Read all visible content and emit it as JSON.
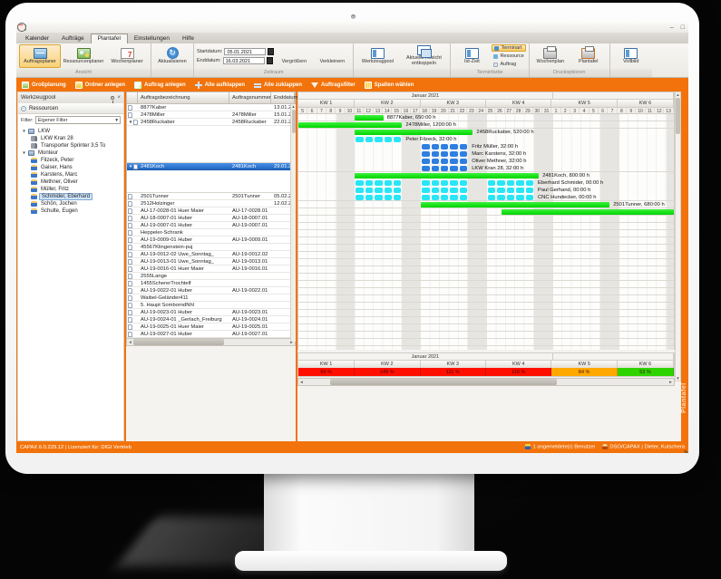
{
  "window": {
    "menu": [
      "Kalender",
      "Aufträge",
      "Plantafel",
      "Einstellungen",
      "Hilfe"
    ],
    "active_menu": "Plantafel",
    "minimize": "–",
    "maximize": "□"
  },
  "ribbon": {
    "auftragsplaner": "Auftragsplaner",
    "ressourcenplaner": "Ressourcenplaner",
    "wochenplaner": "Wochenplaner",
    "ansicht_group": "Ansicht",
    "aktualisieren": "Aktualisieren",
    "refresh_glyph": "↻",
    "startdatum_label": "Startdatum:",
    "startdatum_value": "05.01.2021",
    "enddatum_label": "Enddatum:",
    "enddatum_value": "16.03.2021",
    "vergroessern": "Vergrößern",
    "verkleinern": "Verkleinern",
    "zeitraum_group": "Zeitraum",
    "werkzeugpool": "Werkzeugpool",
    "entkoppeln": "Aktuelle Ansicht entkoppeln",
    "ist_zeit": "Ist-Zeit",
    "terminart": "Terminart",
    "ressource": "Ressource",
    "auftrag": "Auftrag",
    "terminfarbe_group": "Terminfarbe",
    "wochenplan": "Wochenplan",
    "plantafel_print": "Plantafel",
    "druckoptionen_group": "Druckoptionen",
    "vollbild": "Vollbild"
  },
  "action_bar": {
    "items": [
      {
        "icon": "chart",
        "label": "Großplanung"
      },
      {
        "icon": "folder",
        "label": "Ordner anlegen"
      },
      {
        "icon": "doc",
        "label": "Auftrag anlegen"
      },
      {
        "icon": "plus",
        "label": "Alle aufklappen"
      },
      {
        "icon": "minus",
        "label": "Alle zuklappen"
      },
      {
        "icon": "funnel",
        "label": "Auftragsfilter"
      },
      {
        "icon": "cols",
        "label": "Spalten wählen"
      }
    ]
  },
  "sidebar": {
    "title": "Werkzeugpool",
    "close_glyph": "×",
    "panel_header": "Ressourcen",
    "collapse_glyph": "-",
    "filter_label": "Filter:",
    "filter_value": "Eigener Filter",
    "dropdown_glyph": "▾",
    "tree": [
      {
        "label": "LKW",
        "type": "group",
        "indent": 0
      },
      {
        "label": "LKW Kran 28",
        "type": "truck",
        "indent": 1
      },
      {
        "label": "Transporter Sprinter 3,5 To",
        "type": "truck",
        "indent": 1
      },
      {
        "label": "Monteur",
        "type": "group",
        "indent": 0
      },
      {
        "label": "Filzeck, Peter",
        "type": "person",
        "indent": 1
      },
      {
        "label": "Gaiser, Hans",
        "type": "person",
        "indent": 1
      },
      {
        "label": "Karstens, Marc",
        "type": "person",
        "indent": 1
      },
      {
        "label": "Methner, Oliver",
        "type": "person",
        "indent": 1
      },
      {
        "label": "Müller, Fritz",
        "type": "person",
        "indent": 1
      },
      {
        "label": "Schmider, Eberhard",
        "type": "person",
        "indent": 1,
        "selected": true
      },
      {
        "label": "Schön, Jochen",
        "type": "person",
        "indent": 1
      },
      {
        "label": "Schulte, Eugen",
        "type": "person",
        "indent": 1
      }
    ]
  },
  "orders": {
    "columns": [
      "Auftragsbezeichnung",
      "Auftragsnummer",
      "Enddatum"
    ],
    "rows": [
      {
        "name": "8877Kaber",
        "number": "",
        "end": "13.01.2021"
      },
      {
        "name": "2478Miller",
        "number": "2478Miller",
        "end": "15.01.2021"
      },
      {
        "name": "2458Ruckaber",
        "number": "2458Ruckaber",
        "end": "22.01.2021",
        "expanded": true,
        "spacer": 41
      },
      {
        "name": "2481Koch",
        "number": "2481Koch",
        "end": "29.01.2021",
        "expanded": true,
        "selected": true,
        "spacer": 25
      },
      {
        "name": "2501Tunner",
        "number": "2501Tunner",
        "end": "05.02.2021"
      },
      {
        "name": "2512Holzinger",
        "number": "",
        "end": "12.02.2021"
      },
      {
        "name": "AU-17-0028-01 Huer Maier",
        "number": "AU-17-0028.01",
        "end": ""
      },
      {
        "name": "AU-18-0007-01 Huber",
        "number": "AU-18-0007.01",
        "end": ""
      },
      {
        "name": "AU-19-0007-01 Huber",
        "number": "AU-19-0007.01",
        "end": ""
      },
      {
        "name": "Heppeler-Schrank",
        "number": "",
        "end": ""
      },
      {
        "name": "AU-19-0009-01 Huber",
        "number": "AU-19-0009.01",
        "end": ""
      },
      {
        "name": "45567Klingenstein-puj",
        "number": "",
        "end": ""
      },
      {
        "name": "AU-19-0012-02 Uwe_Sonntag_",
        "number": "AU-19-0012.02",
        "end": ""
      },
      {
        "name": "AU-19-0013-01 Uwe_Sonntag_",
        "number": "AU-19-0013.01",
        "end": ""
      },
      {
        "name": "AU-19-0016-01 Huer Maier",
        "number": "AU-19-0016.01",
        "end": ""
      },
      {
        "name": "2555Lange",
        "number": "",
        "end": ""
      },
      {
        "name": "1455SchererTrochtelf",
        "number": "",
        "end": ""
      },
      {
        "name": "AU-19-0022-01 Huber",
        "number": "AU-19-0022.01",
        "end": ""
      },
      {
        "name": "Waibel-Geländer411",
        "number": "",
        "end": ""
      },
      {
        "name": "5. Haupt SomborndNhl",
        "number": "",
        "end": ""
      },
      {
        "name": "AU-19-0023-01 Huber",
        "number": "AU-19-0023.01",
        "end": ""
      },
      {
        "name": "AU-19-0024-01 _Gerlach_Freiburg",
        "number": "AU-19-0024.01",
        "end": ""
      },
      {
        "name": "AU-19-0025-01 Huer Maier",
        "number": "AU-19-0025.01",
        "end": ""
      },
      {
        "name": "AU-19-0027-01 Huber",
        "number": "AU-19-0027.01",
        "end": ""
      }
    ]
  },
  "gantt": {
    "month_label": "Januar 2021",
    "weeks": [
      {
        "label": "KW 1",
        "days": [
          "5",
          "6",
          "7",
          "8",
          "9",
          "10"
        ]
      },
      {
        "label": "KW 2",
        "days": [
          "11",
          "12",
          "13",
          "14",
          "15",
          "16",
          "17"
        ]
      },
      {
        "label": "KW 3",
        "days": [
          "18",
          "19",
          "20",
          "21",
          "22",
          "23",
          "24"
        ]
      },
      {
        "label": "KW 4",
        "days": [
          "25",
          "26",
          "27",
          "28",
          "29",
          "30",
          "31"
        ]
      },
      {
        "label": "KW 5",
        "days": [
          "1",
          "2",
          "3",
          "4",
          "5",
          "6",
          "7"
        ]
      },
      {
        "label": "KW 6",
        "days": [
          "8",
          "9",
          "10",
          "11",
          "12",
          "13"
        ]
      }
    ],
    "january_col_count": 27,
    "weekend_indices": [
      4,
      5,
      11,
      12,
      18,
      19,
      25,
      26,
      32,
      33,
      39
    ],
    "rows": [
      {
        "type": "bar",
        "start": 6,
        "end": 9,
        "label": "8877Kaber, 650:00 h",
        "sep": true
      },
      {
        "type": "bar",
        "start": 0,
        "end": 11,
        "label": "2478Miller, 1200:00 h",
        "sep": true
      },
      {
        "type": "bar",
        "start": 6,
        "end": 18.5,
        "label": "2458Ruckaber, 520:00 h"
      },
      {
        "type": "pills",
        "color": "cyan",
        "groups": [
          [
            6,
            10
          ]
        ],
        "label": "Peter Filzeck, 32:00 h"
      },
      {
        "type": "pills",
        "color": "blue",
        "groups": [
          [
            13,
            17
          ]
        ],
        "label": "Fritz Müller, 32:00 h"
      },
      {
        "type": "pills",
        "color": "blue",
        "groups": [
          [
            13,
            17
          ]
        ],
        "label": "Marc Karstens, 32:00 h"
      },
      {
        "type": "pills",
        "color": "blue",
        "groups": [
          [
            13,
            17
          ]
        ],
        "label": "Oliver Methner, 32:00 h"
      },
      {
        "type": "pills",
        "color": "blue",
        "groups": [
          [
            13,
            17
          ]
        ],
        "label": "LKW Kran 28, 32:00 h",
        "sep": true
      },
      {
        "type": "bar",
        "start": 6,
        "end": 25.5,
        "label": "2481Koch, 800:00 h"
      },
      {
        "type": "pills",
        "color": "cyan",
        "groups": [
          [
            6,
            10
          ],
          [
            13,
            17
          ],
          [
            20,
            24
          ]
        ],
        "label": "Eberhard Schmider, 00:00 h"
      },
      {
        "type": "pills",
        "color": "cyan",
        "groups": [
          [
            6,
            10
          ],
          [
            13,
            17
          ],
          [
            20,
            24
          ]
        ],
        "label": "Paul Gerhand, 00:00 h"
      },
      {
        "type": "pills",
        "color": "cyan",
        "groups": [
          [
            6,
            10
          ],
          [
            13,
            17
          ],
          [
            20,
            24
          ]
        ],
        "label": "CNC Hundecker, 00:00 h",
        "sep": true
      },
      {
        "type": "bar",
        "start": 13,
        "end": 33,
        "label": "2501Tunner, 680:00 h",
        "sep": true
      },
      {
        "type": "bar",
        "start": 21.5,
        "end": 40,
        "label": "",
        "sep": true
      }
    ],
    "empty_row_count": 18
  },
  "utilization": {
    "month_label": "Januar 2021",
    "weeks": [
      "KW 1",
      "KW 2",
      "KW 3",
      "KW 4",
      "KW 5",
      "KW 6"
    ],
    "week_col_counts": [
      6,
      7,
      7,
      7,
      7,
      6
    ],
    "values": [
      {
        "label": "90 %",
        "color": "#ff0f00"
      },
      {
        "label": "249 %",
        "color": "#ff0f00"
      },
      {
        "label": "111 %",
        "color": "#ff0f00"
      },
      {
        "label": "118 %",
        "color": "#ff0f00"
      },
      {
        "label": "84 %",
        "color": "#ffa800"
      },
      {
        "label": "53 %",
        "color": "#2fd300"
      }
    ]
  },
  "scroll": {
    "left": "◄",
    "right": "►",
    "up": "▲",
    "down": "▼"
  },
  "side_tab": "Plantafel",
  "statusbar": {
    "left": "CAPAX 6.0.229.12 | Lizenziert für: DIGI Vertrieb",
    "users": "1 angemeldete(r) Benutzer",
    "session": "DSO/CAPAX | Dieter, Kutschera"
  },
  "colors": {
    "accent_orange": "#f2730b",
    "bar_green": "#00d400",
    "pill_cyan": "#28e6f6",
    "pill_blue": "#2f7fe0",
    "selected_row_blue": "#2266c0"
  }
}
